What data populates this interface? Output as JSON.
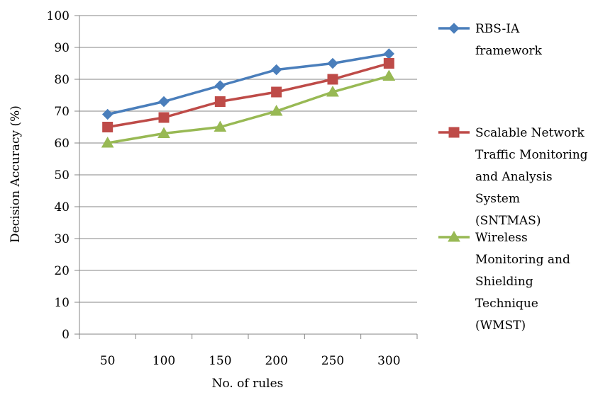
{
  "chart_data": {
    "type": "line",
    "title": "",
    "xlabel": "No. of rules",
    "ylabel": "Decision Accuracy (%)",
    "categories": [
      "50",
      "100",
      "150",
      "200",
      "250",
      "300"
    ],
    "ylim": [
      0,
      100
    ],
    "yticks": [
      "0",
      "10",
      "20",
      "30",
      "40",
      "50",
      "60",
      "70",
      "80",
      "90",
      "100"
    ],
    "grid": "horizontal",
    "legend_position": "right",
    "series": [
      {
        "name": "RBS-IA framework",
        "legend_lines": [
          "RBS-IA",
          "framework"
        ],
        "color": "#4a7ebb",
        "marker": "diamond",
        "values": [
          69,
          73,
          78,
          83,
          85,
          88
        ]
      },
      {
        "name": "Scalable Network Traffic Monitoring and Analysis System (SNTMAS)",
        "legend_lines": [
          "Scalable Network",
          "Traffic Monitoring",
          "and Analysis",
          "System",
          "(SNTMAS)"
        ],
        "color": "#be4b48",
        "marker": "square",
        "values": [
          65,
          68,
          73,
          76,
          80,
          85
        ]
      },
      {
        "name": "Wireless Monitoring and Shielding Technique (WMST)",
        "legend_lines": [
          "Wireless",
          "Monitoring and",
          "Shielding",
          "Technique",
          "(WMST)"
        ],
        "color": "#98b954",
        "marker": "triangle",
        "values": [
          60,
          63,
          65,
          70,
          76,
          81
        ]
      }
    ]
  }
}
